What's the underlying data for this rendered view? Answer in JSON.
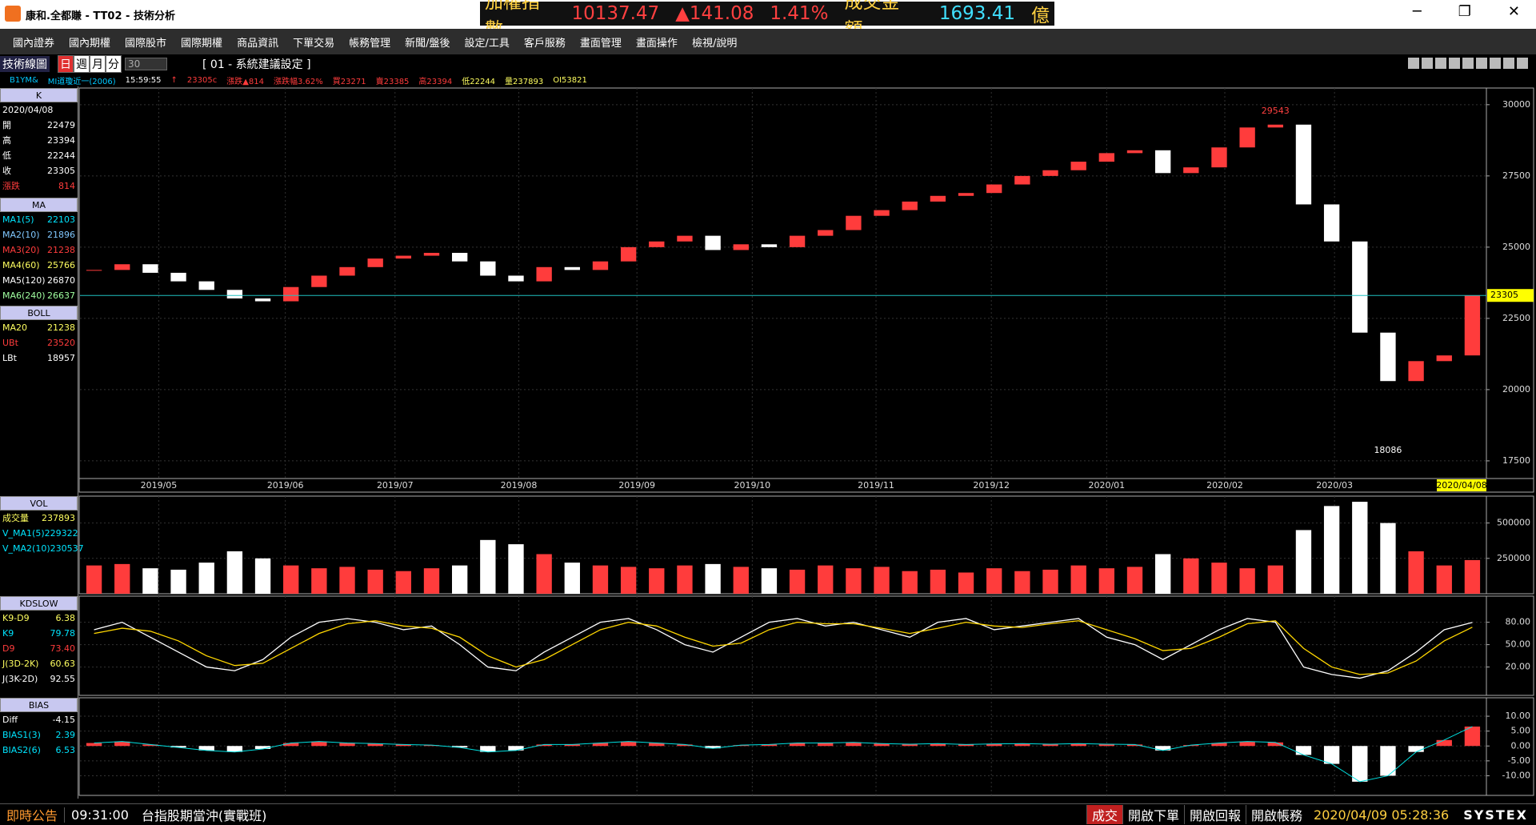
{
  "window": {
    "title": "康和.全都賺 - TT02 - 技術分析"
  },
  "ticker": {
    "name": "加權指數",
    "index": "10137.47",
    "change": "▲141.08",
    "percent": "1.41%",
    "turnover_label": "成交金額",
    "turnover": "1693.41",
    "unit": "億"
  },
  "menu": [
    "國內證券",
    "國內期權",
    "國際股市",
    "國際期權",
    "商品資訊",
    "下單交易",
    "帳務管理",
    "新聞/盤後",
    "設定/工具",
    "客戶服務",
    "畫面管理",
    "畫面操作",
    "檢視/說明"
  ],
  "toolbar": {
    "panel": "技術線圖",
    "periods": [
      "日",
      "週",
      "月",
      "分"
    ],
    "minutes": "30",
    "template": "[ 01 - 系統建議設定 ]"
  },
  "quote_line": [
    {
      "text": "B1YM&",
      "color": "#00c8ff"
    },
    {
      "text": "MI道瓊近一(2006)",
      "color": "#00c8ff"
    },
    {
      "text": "15:59:55",
      "color": "#ffffff"
    },
    {
      "text": "↑",
      "color": "#ff3c3c"
    },
    {
      "text": "23305c",
      "color": "#ff3c3c"
    },
    {
      "text": "漲跌▲814",
      "color": "#ff3c3c"
    },
    {
      "text": "漲跌幅3.62%",
      "color": "#ff3c3c"
    },
    {
      "text": "買23271",
      "color": "#ff3c3c"
    },
    {
      "text": "賣23385",
      "color": "#ff3c3c"
    },
    {
      "text": "高23394",
      "color": "#ff3c3c"
    },
    {
      "text": "低22244",
      "color": "#ffff60"
    },
    {
      "text": "量237893",
      "color": "#ffff60"
    },
    {
      "text": "OI53821",
      "color": "#ffff60"
    }
  ],
  "sidebar": [
    {
      "title": "K",
      "rows": [
        {
          "label": "2020/04/08",
          "color": "#ffffff"
        },
        {
          "label": "開",
          "value": "22479",
          "color": "#ffffff"
        },
        {
          "label": "高",
          "value": "23394",
          "color": "#ffffff"
        },
        {
          "label": "低",
          "value": "22244",
          "color": "#ffffff"
        },
        {
          "label": "收",
          "value": "23305",
          "color": "#ffffff"
        },
        {
          "label": "漲跌",
          "value": "814",
          "color": "#ff3c3c"
        }
      ]
    },
    {
      "title": "MA",
      "rows": [
        {
          "label": "MA1(5)",
          "value": "22103",
          "color": "#00e5ff"
        },
        {
          "label": "MA2(10)",
          "value": "21896",
          "color": "#80c8ff"
        },
        {
          "label": "MA3(20)",
          "value": "21238",
          "color": "#ff3c3c"
        },
        {
          "label": "MA4(60)",
          "value": "25766",
          "color": "#ffff60"
        },
        {
          "label": "MA5(120)",
          "value": "26870",
          "color": "#ffffff"
        },
        {
          "label": "MA6(240)",
          "value": "26637",
          "color": "#a0ffa0"
        }
      ]
    },
    {
      "title": "BOLL",
      "rows": [
        {
          "label": "MA20",
          "value": "21238",
          "color": "#ffff60"
        },
        {
          "label": "UBt",
          "value": "23520",
          "color": "#ff3c3c"
        },
        {
          "label": "LBt",
          "value": "18957",
          "color": "#ffffff"
        }
      ]
    },
    {
      "title": "VOL",
      "rows": [
        {
          "label": "成交量",
          "value": "237893",
          "color": "#ffff60"
        },
        {
          "label": "V_MA1(5)",
          "value": "229322",
          "color": "#00e5ff"
        },
        {
          "label": "V_MA2(10)",
          "value": "230537",
          "color": "#00e5ff"
        }
      ]
    },
    {
      "title": "KDSLOW",
      "rows": [
        {
          "label": "K9-D9",
          "value": "6.38",
          "color": "#ffff60"
        },
        {
          "label": "K9",
          "value": "79.78",
          "color": "#00e5ff"
        },
        {
          "label": "D9",
          "value": "73.40",
          "color": "#ff3c3c"
        },
        {
          "label": "J(3D-2K)",
          "value": "60.63",
          "color": "#ffff60"
        },
        {
          "label": "J(3K-2D)",
          "value": "92.55",
          "color": "#ffffff"
        }
      ]
    },
    {
      "title": "BIAS",
      "rows": [
        {
          "label": "Diff",
          "value": "-4.15",
          "color": "#ffffff"
        },
        {
          "label": "BIAS1(3)",
          "value": "2.39",
          "color": "#00e5ff"
        },
        {
          "label": "BIAS2(6)",
          "value": "6.53",
          "color": "#00e5ff"
        }
      ]
    }
  ],
  "chart_data": [
    {
      "type": "candlestick",
      "x_labels": [
        "2019/05",
        "2019/06",
        "2019/07",
        "2019/08",
        "2019/09",
        "2019/10",
        "2019/11",
        "2019/12",
        "2020/01",
        "2020/02",
        "2020/03"
      ],
      "values": [
        24200,
        24400,
        24100,
        23800,
        23500,
        23200,
        23100,
        23600,
        24000,
        24300,
        24600,
        24700,
        24800,
        24500,
        24000,
        23800,
        24300,
        24200,
        24500,
        25000,
        25200,
        25400,
        24900,
        25100,
        25000,
        25400,
        25600,
        26100,
        26300,
        26600,
        26800,
        26900,
        27200,
        27500,
        27700,
        28000,
        28300,
        28400,
        27600,
        27800,
        28500,
        29200,
        29300,
        26500,
        25200,
        22000,
        20300,
        21000,
        21200,
        23305
      ],
      "ylim": [
        16880,
        30585
      ],
      "yticks": [
        17500,
        20000,
        22500,
        25000,
        27500,
        30000
      ],
      "grid": true,
      "colors": {
        "up": "#ff3c3c",
        "down": "#ffffff"
      },
      "annotations": {
        "high": 29543,
        "low": 18086,
        "last": 23305,
        "last_date": "2020/04/08"
      }
    },
    {
      "type": "bar",
      "values": [
        200000,
        210000,
        180000,
        170000,
        220000,
        300000,
        250000,
        200000,
        180000,
        190000,
        170000,
        160000,
        180000,
        200000,
        380000,
        350000,
        280000,
        220000,
        200000,
        190000,
        180000,
        200000,
        210000,
        190000,
        180000,
        170000,
        200000,
        180000,
        190000,
        160000,
        170000,
        150000,
        180000,
        160000,
        170000,
        200000,
        180000,
        190000,
        280000,
        250000,
        220000,
        180000,
        200000,
        450000,
        620000,
        650000,
        500000,
        300000,
        200000,
        237893
      ],
      "ylim": [
        0,
        690000
      ],
      "yticks": [
        250000,
        500000
      ],
      "grid": true,
      "colors": {
        "up": "#ff3c3c",
        "down": "#ffffff"
      }
    },
    {
      "type": "line",
      "series": [
        {
          "color": "#ffffff",
          "values": [
            70,
            80,
            60,
            40,
            20,
            15,
            30,
            60,
            80,
            85,
            80,
            70,
            75,
            50,
            20,
            15,
            40,
            60,
            80,
            85,
            70,
            50,
            40,
            60,
            80,
            85,
            75,
            80,
            70,
            60,
            80,
            85,
            70,
            75,
            80,
            85,
            60,
            50,
            30,
            50,
            70,
            85,
            80,
            20,
            10,
            5,
            15,
            40,
            70,
            79.78
          ]
        },
        {
          "color": "#ffd700",
          "values": [
            65,
            72,
            68,
            55,
            35,
            22,
            25,
            45,
            65,
            78,
            82,
            75,
            72,
            60,
            35,
            20,
            30,
            50,
            70,
            80,
            75,
            60,
            48,
            52,
            70,
            80,
            78,
            78,
            72,
            65,
            72,
            80,
            75,
            73,
            78,
            82,
            70,
            58,
            42,
            45,
            60,
            78,
            82,
            45,
            20,
            10,
            12,
            28,
            55,
            73.4
          ]
        }
      ],
      "ylim": [
        -18,
        115
      ],
      "yticks": [
        {
          "value": 20,
          "label": "20.00"
        },
        {
          "value": 50,
          "label": "50.00"
        },
        {
          "value": 80,
          "label": "80.00"
        }
      ],
      "grid": true
    },
    {
      "type": "bias",
      "values": [
        1,
        1.5,
        0.5,
        -0.5,
        -1.5,
        -2,
        -1,
        1,
        1.5,
        1,
        0.8,
        0.5,
        0.3,
        -0.5,
        -2,
        -1.5,
        0.5,
        0.5,
        1,
        1.5,
        1,
        0.5,
        -0.8,
        0.3,
        0.5,
        1,
        1,
        1.2,
        0.8,
        0.6,
        0.8,
        0.5,
        0.7,
        0.8,
        0.6,
        0.8,
        0.6,
        0.5,
        -1.5,
        0.3,
        1,
        1.5,
        1.2,
        -3,
        -6,
        -12,
        -10,
        -2,
        2,
        6.53
      ],
      "ylim": [
        -16.6,
        16.2
      ],
      "yticks": [
        {
          "value": -10,
          "label": "-10.00"
        },
        {
          "value": -5,
          "label": "-5.00"
        },
        {
          "value": 0,
          "label": "0.00"
        },
        {
          "value": 5,
          "label": "5.00"
        },
        {
          "value": 10,
          "label": "10.00"
        }
      ],
      "grid": true,
      "colors": {
        "up": "#ff3c3c",
        "down": "#ffffff",
        "line": "#00e0e0"
      }
    }
  ],
  "status": {
    "notice": "即時公告",
    "time": "09:31:00",
    "message": "台指股期當沖(實戰班)",
    "buttons": [
      "成交",
      "開啟下單",
      "開啟回報",
      "開啟帳務"
    ],
    "clock": "2020/04/09 05:28:36",
    "brand": "SYSTEX"
  }
}
